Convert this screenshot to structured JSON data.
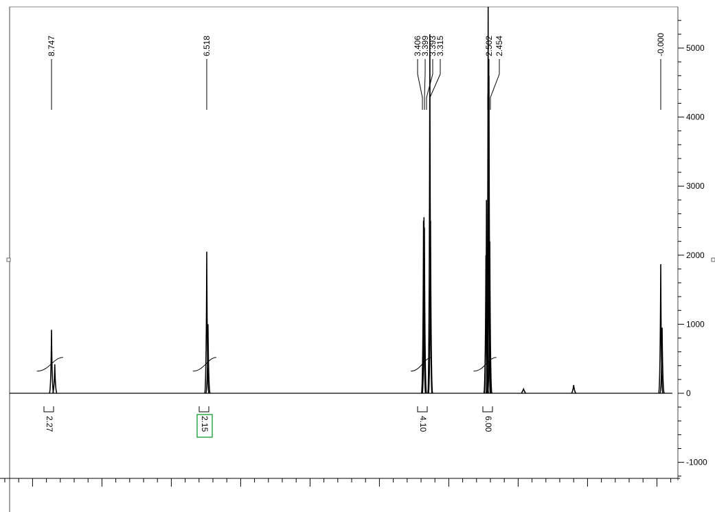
{
  "chart_data": {
    "type": "line",
    "title": "",
    "xlabel": "",
    "ylabel": "",
    "y_axis_position": "right",
    "y_ticks": [
      5000,
      4000,
      3000,
      2000,
      1000,
      0,
      -1000
    ],
    "ylim": [
      -1250,
      5600
    ],
    "xlim": [
      9.3,
      -0.15
    ],
    "x_reversed": true,
    "grid": false,
    "x_tick_labels_visible": false,
    "peak_labels": [
      "8.747",
      "6.518",
      "3.406",
      "3.399",
      "3.393",
      "3.315",
      "2.502",
      "2.454",
      "-0.000"
    ],
    "peaks": [
      {
        "ppm": 8.747,
        "intensity": 920
      },
      {
        "ppm": 8.7,
        "intensity": 420
      },
      {
        "ppm": 6.518,
        "intensity": 2050
      },
      {
        "ppm": 6.5,
        "intensity": 1000
      },
      {
        "ppm": 3.406,
        "intensity": 2500
      },
      {
        "ppm": 3.399,
        "intensity": 2550
      },
      {
        "ppm": 3.393,
        "intensity": 2400
      },
      {
        "ppm": 3.315,
        "intensity": 5200
      },
      {
        "ppm": 3.305,
        "intensity": 2500
      },
      {
        "ppm": 2.51,
        "intensity": 2000
      },
      {
        "ppm": 2.502,
        "intensity": 2800
      },
      {
        "ppm": 2.478,
        "intensity": 5600
      },
      {
        "ppm": 2.466,
        "intensity": 4600
      },
      {
        "ppm": 2.454,
        "intensity": 2200
      },
      {
        "ppm": 1.97,
        "intensity": 60
      },
      {
        "ppm": 1.25,
        "intensity": 120
      },
      {
        "ppm": 0.0,
        "intensity": 1870
      },
      {
        "ppm": -0.02,
        "intensity": 950
      }
    ],
    "integrations": [
      {
        "label": "2.27",
        "start": 8.82,
        "end": 8.66,
        "highlighted": false
      },
      {
        "label": "2.15",
        "start": 6.58,
        "end": 6.46,
        "highlighted": true
      },
      {
        "label": "4.10",
        "start": 3.45,
        "end": 3.37,
        "highlighted": false
      },
      {
        "label": "6.00",
        "start": 2.55,
        "end": 2.44,
        "highlighted": false
      }
    ],
    "colors": {
      "trace": "#000000",
      "highlight_box": "#2ea84a"
    }
  }
}
